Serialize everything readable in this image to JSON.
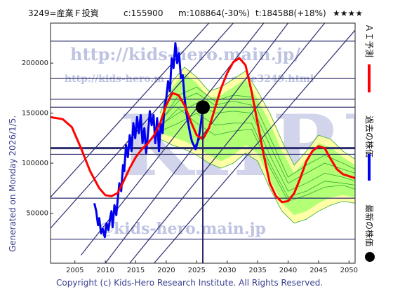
{
  "header": {
    "ticker": "3249=産業Ｆ投資",
    "current": "c:155900",
    "min": "m:108864(-30%)",
    "target": "t:184588(+18%)",
    "stars": "★★★★"
  },
  "side_text": "Generated on Monday 2026/1/5.",
  "copyright": "Copyright (c) Kids-Hero Research Institute. All Rights Reserved.",
  "watermarks": {
    "url1": "http://kids-hero.main.jp/",
    "url2": "http://kids-hero.m",
    "url2b": "code3249.html",
    "big": "KHRI",
    "email": "@kids-hero.main.jp"
  },
  "legend": {
    "ai": "ＡＩ予測",
    "past": "過去の株価",
    "latest": "最新の株価"
  },
  "colors": {
    "ai": "#ff0000",
    "past": "#0000ee",
    "band_outer": "#ffff99",
    "band_inner": "#99ff66",
    "band_line": "#33aa33",
    "grid": "#2b2d6e"
  },
  "chart_data": {
    "type": "line",
    "xlim": [
      2001,
      2051
    ],
    "ylim": [
      0,
      240000
    ],
    "x_ticks": [
      2005,
      2010,
      2015,
      2020,
      2025,
      2030,
      2035,
      2040,
      2045,
      2050
    ],
    "y_ticks": [
      50000,
      100000,
      150000,
      200000
    ],
    "x_tick_labels": [
      "2005",
      "2010",
      "2015",
      "2020",
      "2025",
      "2030",
      "2035",
      "2040",
      "2045",
      "2050"
    ],
    "y_tick_labels": [
      "50000",
      "100000",
      "150000",
      "200000"
    ],
    "h_levels": [
      24000,
      65000,
      108864,
      115000,
      155900,
      164000,
      184588,
      222000
    ],
    "h_levels_bold": [
      115000
    ],
    "latest": {
      "x": 2026.0,
      "y": 155900
    },
    "series": [
      {
        "key": "past",
        "points": [
          [
            2008.2,
            60000
          ],
          [
            2008.5,
            52000
          ],
          [
            2008.8,
            38000
          ],
          [
            2009.0,
            45000
          ],
          [
            2009.3,
            30000
          ],
          [
            2009.6,
            34000
          ],
          [
            2009.9,
            26000
          ],
          [
            2010.2,
            40000
          ],
          [
            2010.5,
            33000
          ],
          [
            2010.8,
            46000
          ],
          [
            2011.0,
            52000
          ],
          [
            2011.2,
            36000
          ],
          [
            2011.5,
            58000
          ],
          [
            2011.8,
            48000
          ],
          [
            2012.0,
            62000
          ],
          [
            2012.3,
            80000
          ],
          [
            2012.6,
            72000
          ],
          [
            2012.9,
            98000
          ],
          [
            2013.1,
            92000
          ],
          [
            2013.4,
            118000
          ],
          [
            2013.7,
            106000
          ],
          [
            2014.0,
            128000
          ],
          [
            2014.3,
            112000
          ],
          [
            2014.6,
            140000
          ],
          [
            2014.9,
            125000
          ],
          [
            2015.2,
            146000
          ],
          [
            2015.5,
            130000
          ],
          [
            2015.8,
            148000
          ],
          [
            2016.1,
            120000
          ],
          [
            2016.4,
            135000
          ],
          [
            2016.7,
            110000
          ],
          [
            2017.0,
            130000
          ],
          [
            2017.3,
            152000
          ],
          [
            2017.6,
            138000
          ],
          [
            2017.9,
            148000
          ],
          [
            2018.2,
            120000
          ],
          [
            2018.5,
            145000
          ],
          [
            2018.8,
            112000
          ],
          [
            2019.1,
            140000
          ],
          [
            2019.4,
            130000
          ],
          [
            2019.7,
            155000
          ],
          [
            2020.0,
            165000
          ],
          [
            2020.3,
            182000
          ],
          [
            2020.6,
            172000
          ],
          [
            2020.9,
            205000
          ],
          [
            2021.2,
            195000
          ],
          [
            2021.5,
            220000
          ],
          [
            2021.8,
            200000
          ],
          [
            2022.1,
            210000
          ],
          [
            2022.4,
            185000
          ],
          [
            2022.7,
            188000
          ],
          [
            2023.0,
            165000
          ],
          [
            2023.3,
            150000
          ],
          [
            2023.6,
            140000
          ],
          [
            2023.9,
            130000
          ],
          [
            2024.2,
            122000
          ],
          [
            2024.5,
            118000
          ],
          [
            2024.8,
            114000
          ],
          [
            2025.1,
            120000
          ],
          [
            2025.4,
            128000
          ],
          [
            2025.7,
            140000
          ],
          [
            2026.0,
            155900
          ]
        ]
      },
      {
        "key": "ai",
        "points": [
          [
            2001,
            146000
          ],
          [
            2003,
            144000
          ],
          [
            2004.5,
            136000
          ],
          [
            2006,
            115000
          ],
          [
            2007.5,
            92000
          ],
          [
            2009,
            75000
          ],
          [
            2010,
            68000
          ],
          [
            2011,
            67000
          ],
          [
            2012,
            70000
          ],
          [
            2013,
            82000
          ],
          [
            2014,
            95000
          ],
          [
            2015,
            106000
          ],
          [
            2016,
            114000
          ],
          [
            2017,
            120000
          ],
          [
            2018,
            128000
          ],
          [
            2019,
            140000
          ],
          [
            2020,
            158000
          ],
          [
            2021,
            170000
          ],
          [
            2022,
            168000
          ],
          [
            2023,
            158000
          ],
          [
            2024,
            142000
          ],
          [
            2025,
            128000
          ],
          [
            2026,
            124000
          ],
          [
            2027,
            135000
          ],
          [
            2028,
            155000
          ],
          [
            2029,
            175000
          ],
          [
            2030,
            190000
          ],
          [
            2031,
            201000
          ],
          [
            2032,
            205000
          ],
          [
            2033,
            198000
          ],
          [
            2034,
            172000
          ],
          [
            2035,
            140000
          ],
          [
            2036,
            108000
          ],
          [
            2037,
            80000
          ],
          [
            2038,
            67000
          ],
          [
            2039,
            61000
          ],
          [
            2040,
            62000
          ],
          [
            2041,
            70000
          ],
          [
            2042,
            85000
          ],
          [
            2043,
            102000
          ],
          [
            2044,
            112000
          ],
          [
            2045,
            117000
          ],
          [
            2046,
            115000
          ],
          [
            2047,
            104000
          ],
          [
            2048,
            94000
          ],
          [
            2049,
            89000
          ],
          [
            2050,
            87000
          ],
          [
            2051,
            85000
          ]
        ]
      }
    ],
    "band_outer_upper": [
      [
        2019,
        150000
      ],
      [
        2021,
        182000
      ],
      [
        2023,
        196000
      ],
      [
        2025,
        186000
      ],
      [
        2027,
        172000
      ],
      [
        2029,
        176000
      ],
      [
        2031,
        184000
      ],
      [
        2033,
        192000
      ],
      [
        2035,
        172000
      ],
      [
        2037,
        150000
      ],
      [
        2039,
        122000
      ],
      [
        2041,
        98000
      ],
      [
        2043,
        112000
      ],
      [
        2045,
        128000
      ],
      [
        2047,
        124000
      ],
      [
        2049,
        112000
      ],
      [
        2051,
        104000
      ]
    ],
    "band_outer_lower": [
      [
        2019,
        124000
      ],
      [
        2021,
        118000
      ],
      [
        2023,
        114000
      ],
      [
        2025,
        108000
      ],
      [
        2027,
        100000
      ],
      [
        2029,
        95000
      ],
      [
        2031,
        100000
      ],
      [
        2033,
        110000
      ],
      [
        2035,
        102000
      ],
      [
        2037,
        75000
      ],
      [
        2039,
        52000
      ],
      [
        2041,
        40000
      ],
      [
        2043,
        44000
      ],
      [
        2045,
        52000
      ],
      [
        2047,
        58000
      ],
      [
        2049,
        62000
      ],
      [
        2051,
        60000
      ]
    ],
    "band_inner_upper": [
      [
        2019,
        145000
      ],
      [
        2021,
        176000
      ],
      [
        2023,
        190000
      ],
      [
        2025,
        180000
      ],
      [
        2027,
        165000
      ],
      [
        2029,
        168000
      ],
      [
        2031,
        176000
      ],
      [
        2033,
        184000
      ],
      [
        2035,
        164000
      ],
      [
        2037,
        140000
      ],
      [
        2039,
        112000
      ],
      [
        2041,
        90000
      ],
      [
        2043,
        104000
      ],
      [
        2045,
        120000
      ],
      [
        2047,
        116000
      ],
      [
        2049,
        106000
      ],
      [
        2051,
        98000
      ]
    ],
    "band_inner_lower": [
      [
        2019,
        130000
      ],
      [
        2021,
        126000
      ],
      [
        2023,
        122000
      ],
      [
        2025,
        116000
      ],
      [
        2027,
        108000
      ],
      [
        2029,
        102000
      ],
      [
        2031,
        108000
      ],
      [
        2033,
        118000
      ],
      [
        2035,
        110000
      ],
      [
        2037,
        84000
      ],
      [
        2039,
        60000
      ],
      [
        2041,
        48000
      ],
      [
        2043,
        52000
      ],
      [
        2045,
        60000
      ],
      [
        2047,
        66000
      ],
      [
        2049,
        68000
      ],
      [
        2051,
        66000
      ]
    ],
    "band_lines": [
      [
        [
          2019,
          138000
        ],
        [
          2022,
          150000
        ],
        [
          2025,
          160000
        ],
        [
          2028,
          150000
        ],
        [
          2031,
          152000
        ],
        [
          2034,
          150000
        ],
        [
          2037,
          108000
        ],
        [
          2040,
          72000
        ],
        [
          2043,
          80000
        ],
        [
          2046,
          90000
        ],
        [
          2049,
          86000
        ],
        [
          2051,
          82000
        ]
      ],
      [
        [
          2019,
          132000
        ],
        [
          2022,
          140000
        ],
        [
          2025,
          150000
        ],
        [
          2028,
          138000
        ],
        [
          2031,
          140000
        ],
        [
          2034,
          140000
        ],
        [
          2037,
          100000
        ],
        [
          2040,
          66000
        ],
        [
          2043,
          72000
        ],
        [
          2046,
          82000
        ],
        [
          2049,
          80000
        ],
        [
          2051,
          78000
        ]
      ],
      [
        [
          2019,
          142000
        ],
        [
          2022,
          162000
        ],
        [
          2025,
          170000
        ],
        [
          2028,
          158000
        ],
        [
          2031,
          162000
        ],
        [
          2034,
          158000
        ],
        [
          2037,
          118000
        ],
        [
          2040,
          80000
        ],
        [
          2043,
          90000
        ],
        [
          2046,
          100000
        ],
        [
          2049,
          94000
        ],
        [
          2051,
          90000
        ]
      ],
      [
        [
          2019,
          136000
        ],
        [
          2022,
          155000
        ],
        [
          2025,
          140000
        ],
        [
          2028,
          128000
        ],
        [
          2031,
          132000
        ],
        [
          2034,
          134000
        ],
        [
          2037,
          96000
        ],
        [
          2040,
          62000
        ],
        [
          2043,
          68000
        ],
        [
          2046,
          76000
        ],
        [
          2049,
          78000
        ],
        [
          2051,
          74000
        ]
      ],
      [
        [
          2019,
          140000
        ],
        [
          2022,
          168000
        ],
        [
          2025,
          176000
        ],
        [
          2028,
          162000
        ],
        [
          2031,
          168000
        ],
        [
          2034,
          166000
        ],
        [
          2037,
          126000
        ],
        [
          2040,
          86000
        ],
        [
          2043,
          98000
        ],
        [
          2046,
          108000
        ],
        [
          2049,
          100000
        ],
        [
          2051,
          94000
        ]
      ]
    ],
    "diagonals": [
      [
        [
          2001,
          66000
        ],
        [
          2027,
          240000
        ]
      ],
      [
        [
          2001,
          35000
        ],
        [
          2031,
          240000
        ]
      ],
      [
        [
          2006,
          8000
        ],
        [
          2036,
          240000
        ]
      ],
      [
        [
          2010,
          0
        ],
        [
          2040,
          240000
        ]
      ],
      [
        [
          2014,
          0
        ],
        [
          2046,
          240000
        ]
      ],
      [
        [
          2018,
          0
        ],
        [
          2052,
          240000
        ]
      ]
    ]
  }
}
